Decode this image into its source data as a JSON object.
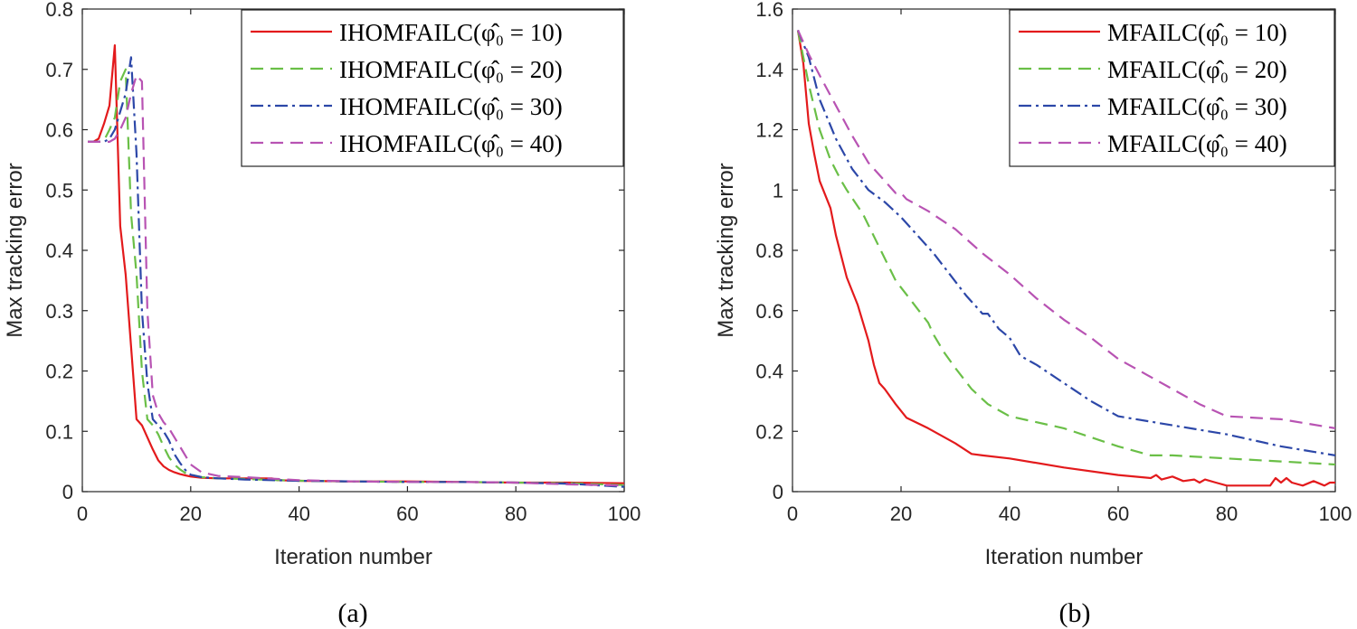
{
  "chart_data": [
    {
      "type": "line",
      "caption": "(a)",
      "xlabel": "Iteration number",
      "ylabel": "Max tracking error",
      "xlim": [
        0,
        100
      ],
      "ylim": [
        0,
        0.8
      ],
      "xticks": [
        "0",
        "20",
        "40",
        "60",
        "80",
        "100"
      ],
      "yticks": [
        "0",
        "0.1",
        "0.2",
        "0.3",
        "0.4",
        "0.5",
        "0.6",
        "0.7",
        "0.8"
      ],
      "legend_position": "top-right",
      "grid": false,
      "series": [
        {
          "name": "IHOMFAILC(φ̂₀ = 10)",
          "color": "#e31a1c",
          "dash": "solid",
          "x": [
            1,
            2,
            3,
            4,
            5,
            6,
            7,
            8,
            9,
            10,
            11,
            12,
            13,
            14,
            15,
            16,
            17,
            18,
            19,
            20,
            22,
            25,
            30,
            35,
            36,
            40,
            50,
            60,
            70,
            80,
            90,
            100
          ],
          "y": [
            0.58,
            0.58,
            0.585,
            0.61,
            0.64,
            0.74,
            0.44,
            0.36,
            0.24,
            0.12,
            0.11,
            0.09,
            0.07,
            0.052,
            0.042,
            0.036,
            0.032,
            0.029,
            0.027,
            0.025,
            0.023,
            0.022,
            0.022,
            0.022,
            0.019,
            0.018,
            0.017,
            0.017,
            0.016,
            0.015,
            0.015,
            0.014
          ]
        },
        {
          "name": "IHOMFAILC(φ̂₀ = 20)",
          "color": "#6abf47",
          "dash": "14 8",
          "x": [
            1,
            2,
            3,
            4,
            5,
            6,
            7,
            8,
            9,
            10,
            11,
            12,
            13,
            14,
            15,
            16,
            17,
            18,
            19,
            20,
            22,
            25,
            30,
            40,
            50,
            60,
            70,
            80,
            90,
            100
          ],
          "y": [
            0.58,
            0.58,
            0.58,
            0.582,
            0.6,
            0.62,
            0.68,
            0.7,
            0.46,
            0.36,
            0.2,
            0.12,
            0.11,
            0.095,
            0.075,
            0.057,
            0.045,
            0.037,
            0.031,
            0.028,
            0.024,
            0.022,
            0.021,
            0.018,
            0.017,
            0.016,
            0.016,
            0.015,
            0.014,
            0.011
          ]
        },
        {
          "name": "IHOMFAILC(φ̂₀ = 30)",
          "color": "#2c47a8",
          "dash": "14 5 3 5",
          "x": [
            1,
            2,
            3,
            4,
            5,
            6,
            7,
            8,
            9,
            10,
            11,
            12,
            13,
            14,
            15,
            16,
            17,
            18,
            19,
            20,
            22,
            25,
            30,
            40,
            50,
            60,
            70,
            80,
            90,
            100
          ],
          "y": [
            0.58,
            0.58,
            0.58,
            0.58,
            0.585,
            0.6,
            0.63,
            0.66,
            0.72,
            0.56,
            0.3,
            0.18,
            0.12,
            0.11,
            0.1,
            0.085,
            0.062,
            0.048,
            0.036,
            0.028,
            0.024,
            0.022,
            0.02,
            0.018,
            0.017,
            0.016,
            0.016,
            0.015,
            0.013,
            0.008
          ]
        },
        {
          "name": "IHOMFAILC(φ̂₀ = 40)",
          "color": "#b853b3",
          "dash": "14 8",
          "x": [
            1,
            2,
            3,
            4,
            5,
            6,
            7,
            8,
            9,
            10,
            11,
            12,
            13,
            14,
            15,
            16,
            17,
            18,
            19,
            20,
            22,
            25,
            30,
            40,
            50,
            60,
            70,
            80,
            90,
            100
          ],
          "y": [
            0.58,
            0.58,
            0.58,
            0.58,
            0.58,
            0.585,
            0.6,
            0.62,
            0.66,
            0.69,
            0.68,
            0.3,
            0.16,
            0.13,
            0.115,
            0.105,
            0.09,
            0.075,
            0.06,
            0.045,
            0.032,
            0.026,
            0.024,
            0.019,
            0.017,
            0.016,
            0.016,
            0.015,
            0.012,
            0.01
          ]
        }
      ]
    },
    {
      "type": "line",
      "caption": "(b)",
      "xlabel": "Iteration number",
      "ylabel": "Max tracking error",
      "xlim": [
        0,
        100
      ],
      "ylim": [
        0,
        1.6
      ],
      "xticks": [
        "0",
        "20",
        "40",
        "60",
        "80",
        "100"
      ],
      "yticks": [
        "0",
        "0.2",
        "0.4",
        "0.6",
        "0.8",
        "1",
        "1.2",
        "1.4",
        "1.6"
      ],
      "legend_position": "top-right",
      "grid": false,
      "series": [
        {
          "name": "MFAILC(φ̂₀ = 10)",
          "color": "#e31a1c",
          "dash": "solid",
          "x": [
            1,
            2,
            3,
            4,
            5,
            7,
            8,
            10,
            12,
            14,
            15,
            16,
            17,
            19,
            21,
            25,
            30,
            33,
            35,
            40,
            50,
            60,
            66,
            67,
            68,
            70,
            72,
            74,
            75,
            76,
            78,
            80,
            82,
            84,
            86,
            88,
            89,
            90,
            91,
            92,
            94,
            96,
            98,
            99,
            100
          ],
          "y": [
            1.53,
            1.42,
            1.22,
            1.12,
            1.03,
            0.94,
            0.85,
            0.71,
            0.62,
            0.5,
            0.42,
            0.36,
            0.34,
            0.29,
            0.245,
            0.21,
            0.16,
            0.125,
            0.12,
            0.11,
            0.08,
            0.055,
            0.045,
            0.055,
            0.04,
            0.05,
            0.035,
            0.04,
            0.03,
            0.04,
            0.03,
            0.02,
            0.02,
            0.02,
            0.02,
            0.02,
            0.045,
            0.03,
            0.045,
            0.03,
            0.02,
            0.035,
            0.02,
            0.03,
            0.03
          ]
        },
        {
          "name": "MFAILC(φ̂₀ = 20)",
          "color": "#6abf47",
          "dash": "14 8",
          "x": [
            1,
            3,
            5,
            7,
            9,
            10,
            13,
            16,
            19,
            22,
            25,
            26,
            28,
            30,
            33,
            36,
            40,
            50,
            60,
            66,
            70,
            80,
            90,
            100
          ],
          "y": [
            1.53,
            1.35,
            1.2,
            1.1,
            1.03,
            1.0,
            0.92,
            0.81,
            0.7,
            0.63,
            0.56,
            0.52,
            0.46,
            0.41,
            0.34,
            0.29,
            0.25,
            0.21,
            0.15,
            0.12,
            0.12,
            0.11,
            0.1,
            0.09
          ]
        },
        {
          "name": "MFAILC(φ̂₀ = 30)",
          "color": "#2c47a8",
          "dash": "14 5 3 5",
          "x": [
            1,
            3,
            5,
            8,
            11,
            14,
            17,
            20,
            23,
            26,
            29,
            32,
            35,
            36,
            38,
            40,
            42,
            45,
            50,
            55,
            60,
            70,
            80,
            90,
            100
          ],
          "y": [
            1.53,
            1.44,
            1.3,
            1.17,
            1.07,
            1.0,
            0.96,
            0.91,
            0.85,
            0.79,
            0.72,
            0.65,
            0.59,
            0.59,
            0.54,
            0.51,
            0.45,
            0.42,
            0.36,
            0.3,
            0.25,
            0.22,
            0.19,
            0.15,
            0.12
          ]
        },
        {
          "name": "MFAILC(φ̂₀ = 40)",
          "color": "#b853b3",
          "dash": "14 8",
          "x": [
            1,
            3,
            5,
            8,
            11,
            14,
            17,
            19,
            20,
            21,
            22,
            25,
            30,
            35,
            40,
            45,
            50,
            55,
            60,
            65,
            70,
            75,
            80,
            90,
            100
          ],
          "y": [
            1.53,
            1.45,
            1.38,
            1.28,
            1.18,
            1.09,
            1.03,
            0.99,
            0.99,
            0.97,
            0.96,
            0.93,
            0.87,
            0.79,
            0.72,
            0.64,
            0.57,
            0.51,
            0.44,
            0.39,
            0.34,
            0.29,
            0.25,
            0.24,
            0.21
          ]
        }
      ]
    }
  ]
}
